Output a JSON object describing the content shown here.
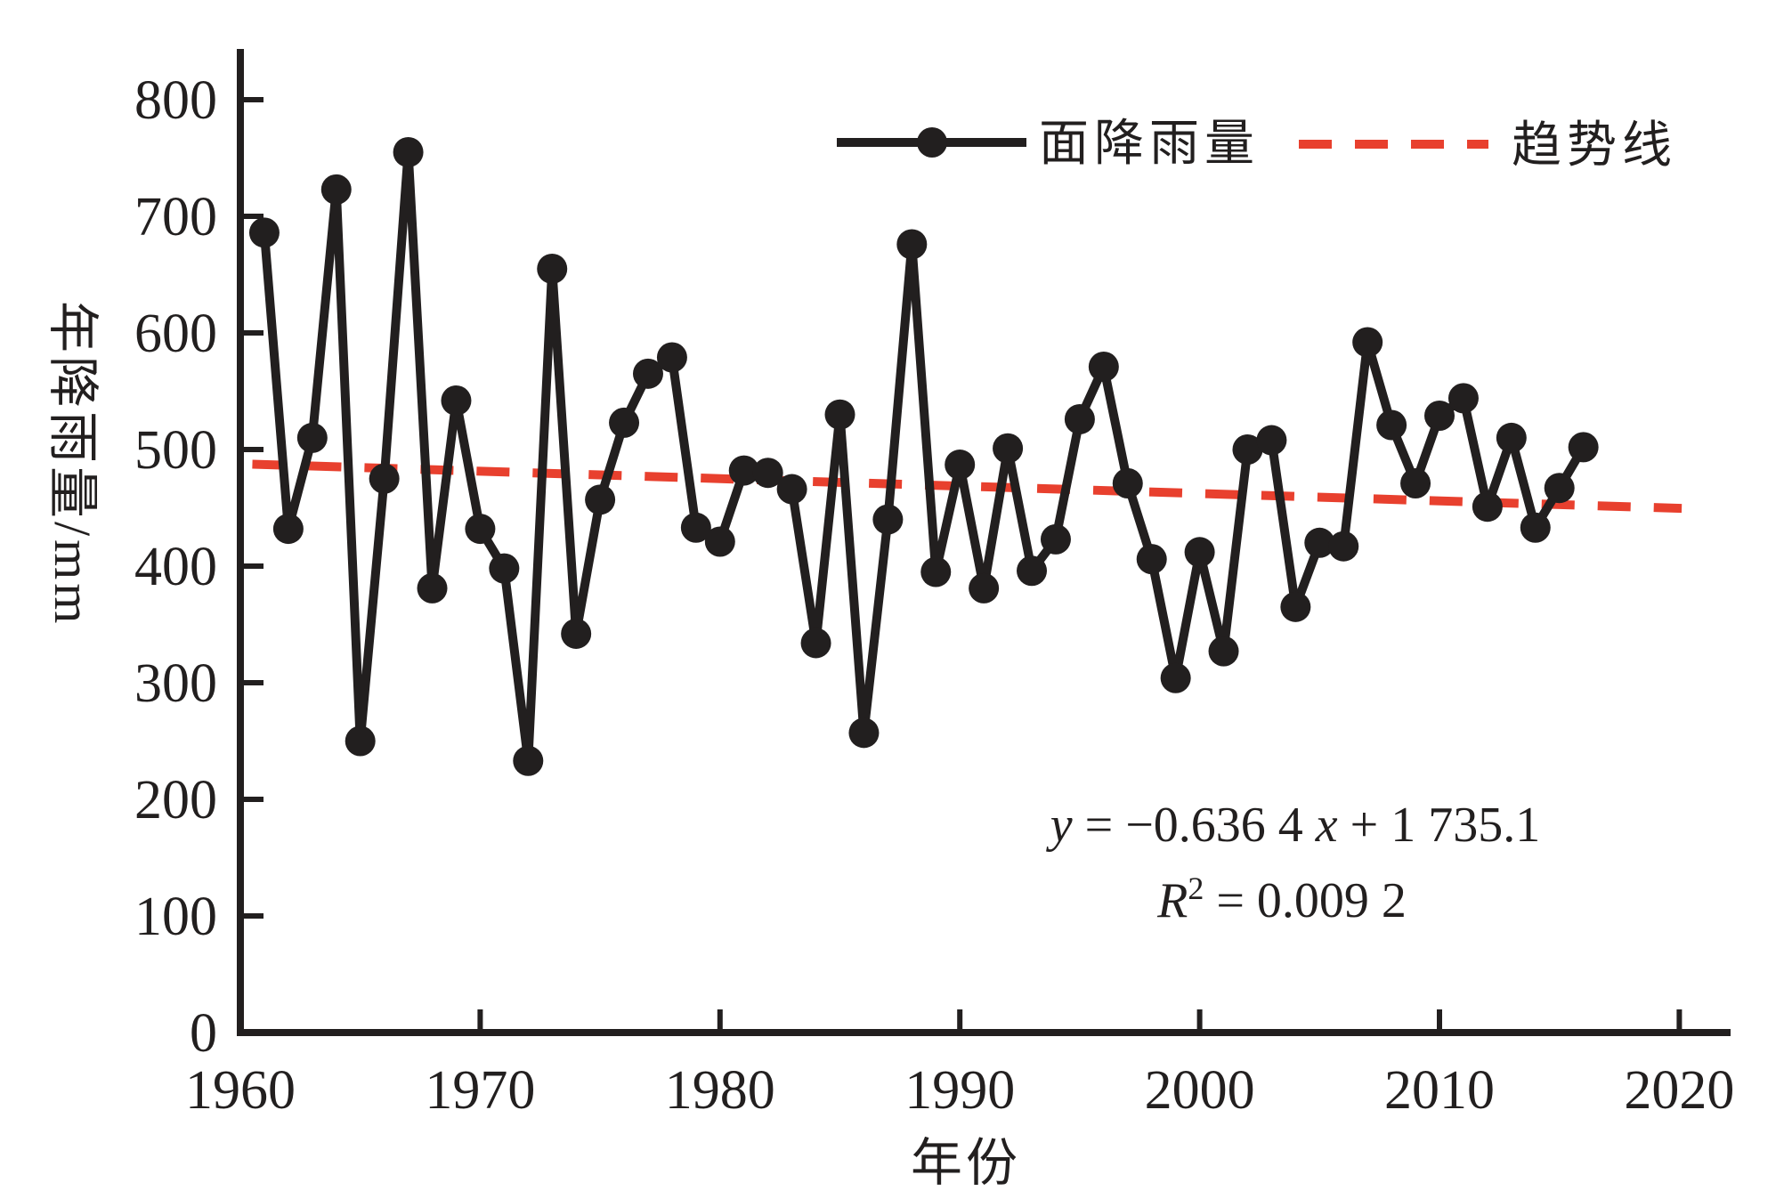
{
  "colors": {
    "axis": "#221f1f",
    "series": "#221f1f",
    "trend": "#e8402e",
    "background": "#ffffff"
  },
  "chart_data": {
    "type": "line",
    "title": "",
    "xlabel": "年份",
    "ylabel": "年降雨量/mm",
    "xlim": [
      1960,
      2023
    ],
    "ylim": [
      0,
      845
    ],
    "grid": false,
    "legend_position": "top-center",
    "x_ticks": [
      1960,
      1970,
      1980,
      1990,
      2000,
      2010,
      2020
    ],
    "y_ticks": [
      0,
      100,
      200,
      300,
      400,
      500,
      600,
      700,
      800
    ],
    "series": [
      {
        "name": "面降雨量",
        "type": "line+marker",
        "color": "#221f1f",
        "x": [
          1961,
          1962,
          1963,
          1964,
          1965,
          1966,
          1967,
          1968,
          1969,
          1970,
          1971,
          1972,
          1973,
          1974,
          1975,
          1976,
          1977,
          1978,
          1979,
          1980,
          1981,
          1982,
          1983,
          1984,
          1985,
          1986,
          1987,
          1988,
          1989,
          1990,
          1991,
          1992,
          1993,
          1994,
          1995,
          1996,
          1997,
          1998,
          1999,
          2000,
          2001,
          2002,
          2003,
          2004,
          2005,
          2006,
          2007,
          2008,
          2009,
          2010,
          2011,
          2012,
          2013,
          2014,
          2015,
          2016
        ],
        "values": [
          686,
          432,
          510,
          723,
          250,
          475,
          755,
          381,
          542,
          432,
          398,
          233,
          655,
          342,
          457,
          523,
          565,
          579,
          433,
          421,
          482,
          480,
          466,
          334,
          530,
          257,
          440,
          676,
          395,
          487,
          381,
          501,
          396,
          423,
          526,
          571,
          471,
          406,
          304,
          412,
          327,
          500,
          508,
          365,
          420,
          417,
          592,
          521,
          471,
          529,
          544,
          451,
          510,
          433,
          467,
          502
        ]
      }
    ],
    "trend": {
      "name": "趋势线",
      "color": "#e8402e",
      "style": "dashed",
      "slope": -0.6364,
      "intercept": 1735.1,
      "x_start": 1960.5,
      "x_end": 2020.1
    },
    "equation": {
      "line1_lhs": "y",
      "line1_mid": " = −0.636 4 ",
      "line1_var": "x",
      "line1_tail": " + 1 735.1",
      "line2_lhs": "R",
      "line2_sup": "2",
      "line2_tail": " = 0.009 2"
    }
  }
}
